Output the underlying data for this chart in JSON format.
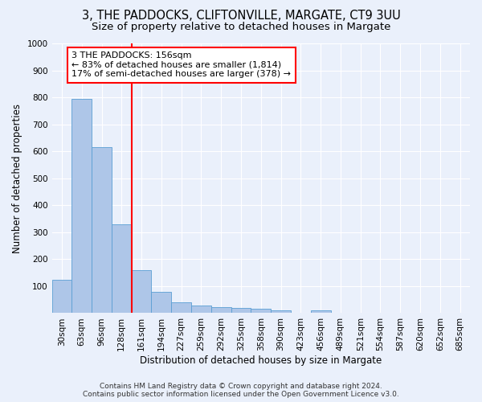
{
  "title_line1": "3, THE PADDOCKS, CLIFTONVILLE, MARGATE, CT9 3UU",
  "title_line2": "Size of property relative to detached houses in Margate",
  "xlabel": "Distribution of detached houses by size in Margate",
  "ylabel": "Number of detached properties",
  "bar_color": "#aec6e8",
  "bar_edge_color": "#5a9fd4",
  "categories": [
    "30sqm",
    "63sqm",
    "96sqm",
    "128sqm",
    "161sqm",
    "194sqm",
    "227sqm",
    "259sqm",
    "292sqm",
    "325sqm",
    "358sqm",
    "390sqm",
    "423sqm",
    "456sqm",
    "489sqm",
    "521sqm",
    "554sqm",
    "587sqm",
    "620sqm",
    "652sqm",
    "685sqm"
  ],
  "values": [
    125,
    795,
    615,
    330,
    160,
    80,
    40,
    27,
    23,
    20,
    15,
    10,
    0,
    10,
    0,
    0,
    0,
    0,
    0,
    0,
    0
  ],
  "vline_x_index": 4,
  "annotation_line1": "3 THE PADDOCKS: 156sqm",
  "annotation_line2": "← 83% of detached houses are smaller (1,814)",
  "annotation_line3": "17% of semi-detached houses are larger (378) →",
  "annotation_box_color": "white",
  "annotation_box_edge_color": "red",
  "vline_color": "red",
  "ylim": [
    0,
    1000
  ],
  "yticks": [
    0,
    100,
    200,
    300,
    400,
    500,
    600,
    700,
    800,
    900,
    1000
  ],
  "footer_line1": "Contains HM Land Registry data © Crown copyright and database right 2024.",
  "footer_line2": "Contains public sector information licensed under the Open Government Licence v3.0.",
  "bg_color": "#eaf0fb",
  "plot_bg_color": "#eaf0fb",
  "grid_color": "white",
  "title_fontsize": 10.5,
  "subtitle_fontsize": 9.5,
  "axis_label_fontsize": 8.5,
  "tick_fontsize": 7.5,
  "annotation_fontsize": 8,
  "footer_fontsize": 6.5
}
